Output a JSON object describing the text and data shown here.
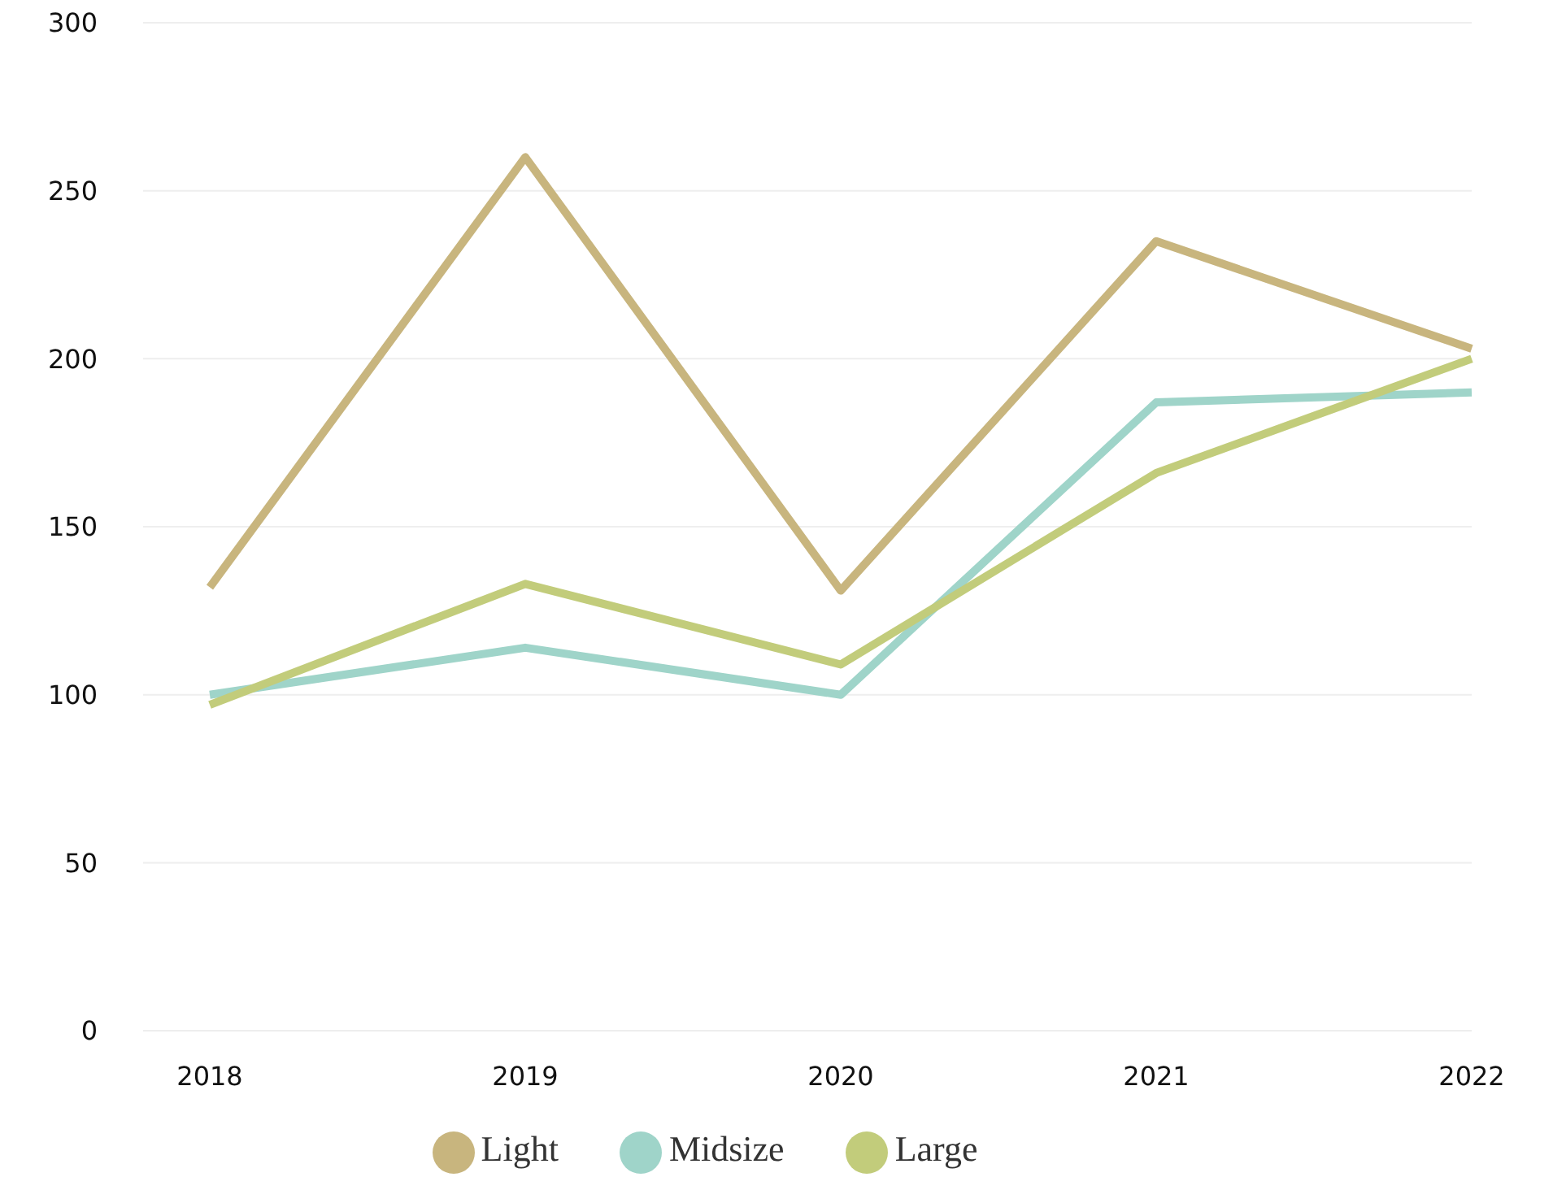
{
  "chart_data": {
    "type": "line",
    "categories": [
      "2018",
      "2019",
      "2020",
      "2021",
      "2022"
    ],
    "series": [
      {
        "name": "Light",
        "color": "#c8b57e",
        "values": [
          132,
          260,
          131,
          235,
          203
        ]
      },
      {
        "name": "Midsize",
        "color": "#9fd4c9",
        "values": [
          100,
          114,
          100,
          187,
          190
        ]
      },
      {
        "name": "Large",
        "color": "#c2cc7b",
        "values": [
          97,
          133,
          109,
          166,
          200
        ]
      }
    ],
    "ylim": [
      0,
      300
    ],
    "yticks": [
      0,
      50,
      100,
      150,
      200,
      250,
      300
    ],
    "grid": "y",
    "legend": "bottom",
    "marker": "none",
    "line_style": "solid"
  }
}
